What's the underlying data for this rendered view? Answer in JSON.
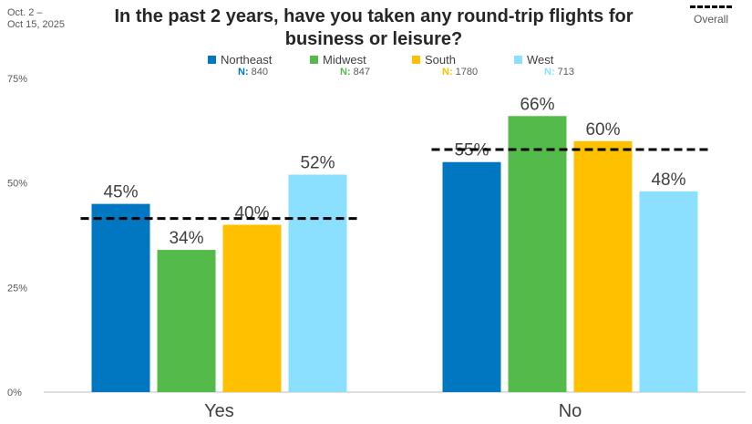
{
  "header": {
    "date_range": "Oct. 2 –\nOct 15, 2025",
    "overall_label": "Overall"
  },
  "chart_data": {
    "type": "bar",
    "title": "In the past 2 years, have you taken any round-trip flights for business or leisure?",
    "categories": [
      "Yes",
      "No"
    ],
    "series": [
      {
        "name": "Northeast",
        "n_label": "N:",
        "n": "840",
        "color": "#0077C0",
        "values": [
          45,
          55
        ]
      },
      {
        "name": "Midwest",
        "n_label": "N:",
        "n": "847",
        "color": "#54BB4B",
        "values": [
          34,
          66
        ]
      },
      {
        "name": "South",
        "n_label": "N:",
        "n": "1780",
        "color": "#FFC000",
        "values": [
          40,
          60
        ]
      },
      {
        "name": "West",
        "n_label": "N:",
        "n": "713",
        "color": "#8BE0FF",
        "values": [
          52,
          48
        ]
      }
    ],
    "overall": [
      41.5,
      58
    ],
    "ylim": [
      0,
      75
    ],
    "yticks": [
      0,
      25,
      50,
      75
    ],
    "ytick_labels": [
      "0%",
      "25%",
      "50%",
      "75%"
    ],
    "value_suffix": "%",
    "grid": false,
    "legend_position": "top"
  }
}
